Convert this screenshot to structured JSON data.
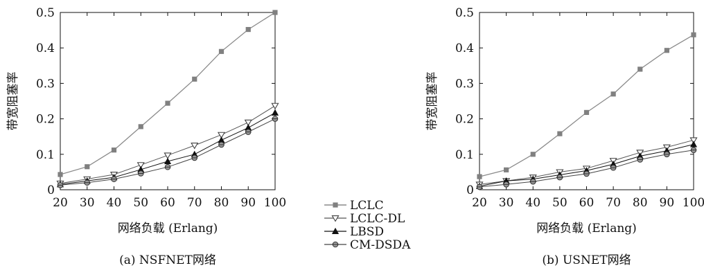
{
  "legend": {
    "items": [
      {
        "name": "LCLC",
        "marker": "square",
        "color": "#808080"
      },
      {
        "name": "LCLC-DL",
        "marker": "triangle-down-open",
        "color": "#404040"
      },
      {
        "name": "LBSD",
        "marker": "triangle-up",
        "color": "#111111"
      },
      {
        "name": "CM-DSDA",
        "marker": "circle-cross",
        "color": "#404040"
      }
    ]
  },
  "chart_data": [
    {
      "type": "line",
      "caption": "(a) NSFNET网络",
      "xlabel": "网络负载 (Erlang)",
      "ylabel": "带宽阻塞率",
      "xlim": [
        20,
        100
      ],
      "ylim": [
        0,
        0.5
      ],
      "xticks": [
        "20",
        "30",
        "40",
        "50",
        "60",
        "70",
        "80",
        "90",
        "100"
      ],
      "yticks": [
        "0",
        "0.1",
        "0.2",
        "0.3",
        "0.4",
        "0.5"
      ],
      "grid": false,
      "x": [
        20,
        30,
        40,
        50,
        60,
        70,
        80,
        90,
        100
      ],
      "series": [
        {
          "name": "LCLC",
          "values": [
            0.043,
            0.065,
            0.112,
            0.178,
            0.244,
            0.312,
            0.39,
            0.452,
            0.5
          ]
        },
        {
          "name": "LCLC-DL",
          "values": [
            0.018,
            0.03,
            0.043,
            0.07,
            0.097,
            0.125,
            0.155,
            0.19,
            0.237
          ]
        },
        {
          "name": "LBSD",
          "values": [
            0.015,
            0.025,
            0.035,
            0.057,
            0.08,
            0.1,
            0.14,
            0.175,
            0.217
          ]
        },
        {
          "name": "CM-DSDA",
          "values": [
            0.013,
            0.02,
            0.03,
            0.046,
            0.064,
            0.09,
            0.127,
            0.163,
            0.2
          ]
        }
      ]
    },
    {
      "type": "line",
      "caption": "(b) USNET网络",
      "xlabel": "网络负载 (Erlang)",
      "ylabel": "带宽阻塞率",
      "xlim": [
        20,
        100
      ],
      "ylim": [
        0,
        0.5
      ],
      "xticks": [
        "20",
        "30",
        "40",
        "50",
        "60",
        "70",
        "80",
        "90",
        "100"
      ],
      "yticks": [
        "0",
        "0.1",
        "0.2",
        "0.3",
        "0.4",
        "0.5"
      ],
      "grid": false,
      "x": [
        20,
        30,
        40,
        50,
        60,
        70,
        80,
        90,
        100
      ],
      "series": [
        {
          "name": "LCLC",
          "values": [
            0.037,
            0.056,
            0.1,
            0.158,
            0.218,
            0.27,
            0.34,
            0.393,
            0.437
          ]
        },
        {
          "name": "LCLC-DL",
          "values": [
            0.015,
            0.025,
            0.035,
            0.05,
            0.06,
            0.082,
            0.105,
            0.12,
            0.14
          ]
        },
        {
          "name": "LBSD",
          "values": [
            0.01,
            0.025,
            0.03,
            0.042,
            0.054,
            0.072,
            0.095,
            0.11,
            0.128
          ]
        },
        {
          "name": "CM-DSDA",
          "values": [
            0.008,
            0.015,
            0.023,
            0.035,
            0.045,
            0.062,
            0.085,
            0.1,
            0.112
          ]
        }
      ]
    }
  ]
}
